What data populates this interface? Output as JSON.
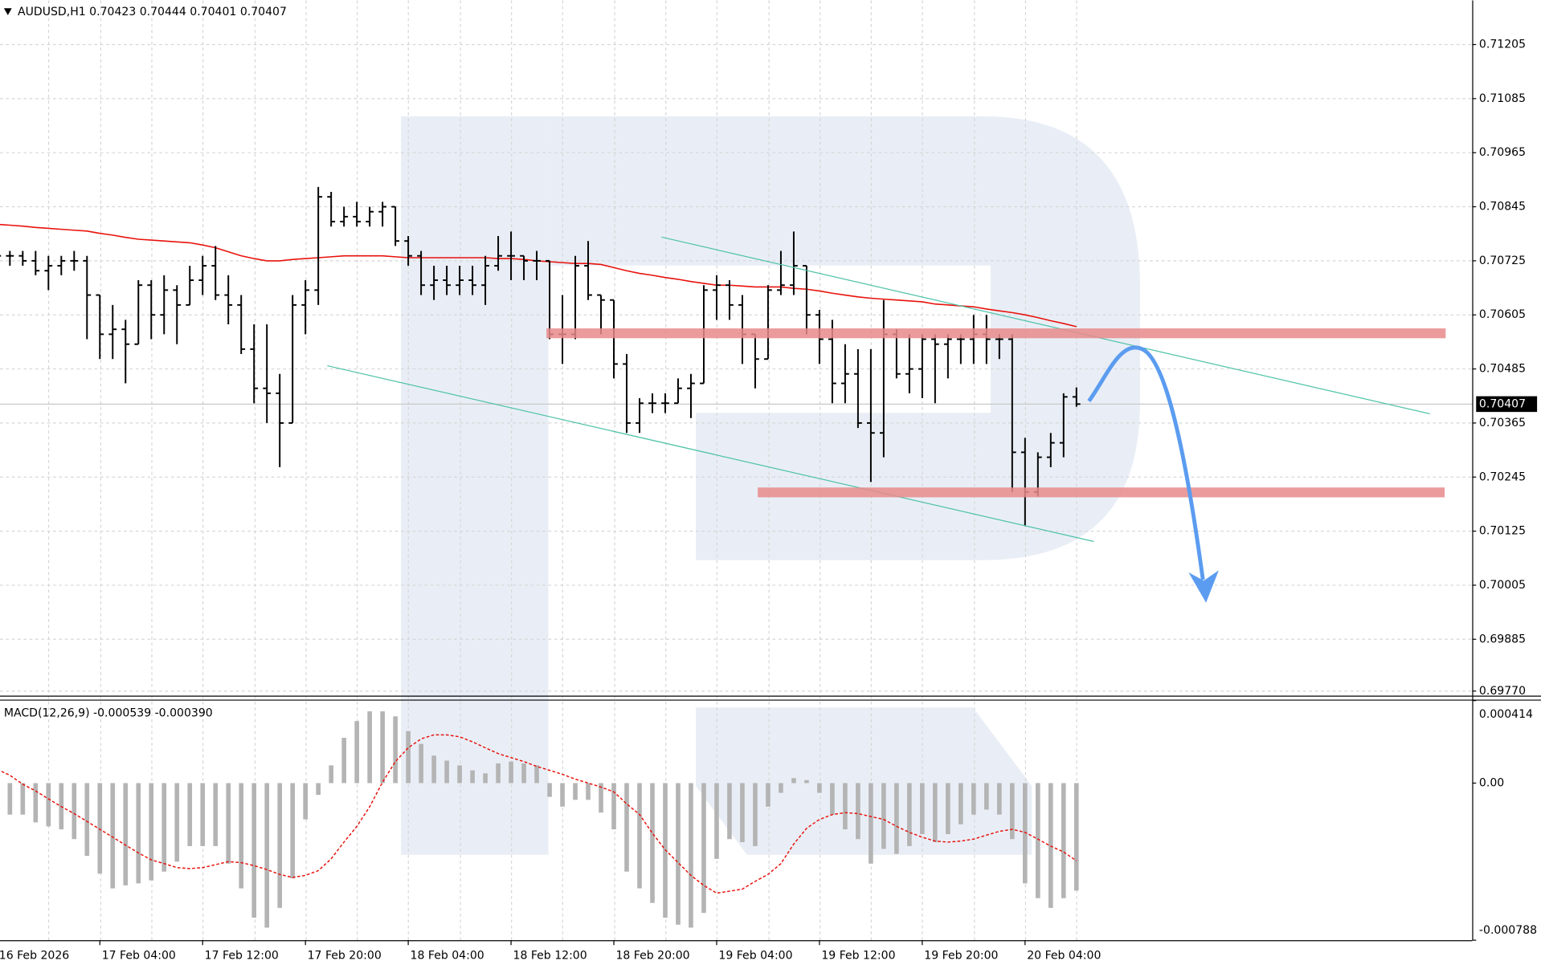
{
  "chart_data": [
    {
      "type": "ohlc",
      "title": "AUDUSD,H1 0.70423 0.70444 0.70401 0.70407",
      "color": "#000000",
      "categories": [
        "16 Feb 2026",
        null,
        null,
        null,
        null,
        null,
        null,
        null,
        "17 Feb 04:00",
        null,
        null,
        null,
        null,
        null,
        null,
        null,
        "17 Feb 12:00",
        null,
        null,
        null,
        null,
        null,
        null,
        null,
        "17 Feb 20:00",
        null,
        null,
        null,
        null,
        null,
        null,
        null,
        "18 Feb 04:00",
        null,
        null,
        null,
        null,
        null,
        null,
        null,
        "18 Feb 12:00",
        null,
        null,
        null,
        null,
        null,
        null,
        null,
        "18 Feb 20:00",
        null,
        null,
        null,
        null,
        null,
        null,
        null,
        "19 Feb 04:00",
        null,
        null,
        null,
        null,
        null,
        null,
        null,
        "19 Feb 12:00",
        null,
        null,
        null,
        null,
        null,
        null,
        null,
        "19 Feb 20:00",
        null,
        null,
        null,
        null,
        null,
        null,
        null,
        "20 Feb 04:00",
        null,
        null,
        null,
        null
      ],
      "open": [
        0.70725,
        0.70736,
        0.70736,
        0.70725,
        0.70703,
        0.70714,
        0.70725,
        0.70725,
        0.70649,
        0.70562,
        0.70573,
        0.7054,
        0.70671,
        0.70605,
        0.7066,
        0.70627,
        0.70682,
        0.70714,
        0.70649,
        0.70627,
        0.70529,
        0.70442,
        0.70431,
        0.70365,
        0.70627,
        0.7066,
        0.70867,
        0.70812,
        0.70823,
        0.70812,
        0.70834,
        0.70845,
        0.70769,
        0.70736,
        0.70671,
        0.70682,
        0.70671,
        0.70682,
        0.70671,
        0.70714,
        0.70736,
        0.70736,
        0.70725,
        0.70725,
        0.70562,
        0.70562,
        0.70714,
        0.70649,
        0.70638,
        0.70496,
        0.70365,
        0.70409,
        0.70409,
        0.70409,
        0.70442,
        0.70453,
        0.7066,
        0.70671,
        0.70627,
        0.70562,
        0.70507,
        0.7066,
        0.70671,
        0.70714,
        0.70605,
        0.70551,
        0.70453,
        0.70474,
        0.70365,
        0.70343,
        0.70562,
        0.70474,
        0.70485,
        0.70551,
        0.7054,
        0.70551,
        0.70551,
        0.70562,
        0.70551,
        0.70551,
        0.703,
        0.70212,
        0.70289,
        0.70321,
        0.70423
      ],
      "high": [
        0.70747,
        0.70747,
        0.70747,
        0.70747,
        0.70736,
        0.70736,
        0.70747,
        0.70736,
        0.70649,
        0.70627,
        0.70594,
        0.70682,
        0.70682,
        0.70693,
        0.70671,
        0.70714,
        0.70736,
        0.70758,
        0.70693,
        0.70649,
        0.70584,
        0.70584,
        0.70474,
        0.70649,
        0.70682,
        0.70889,
        0.70878,
        0.70845,
        0.70856,
        0.70845,
        0.70856,
        0.70845,
        0.7078,
        0.70747,
        0.70714,
        0.70714,
        0.70714,
        0.70714,
        0.70736,
        0.7078,
        0.7079,
        0.70736,
        0.70747,
        0.70725,
        0.70649,
        0.70736,
        0.70769,
        0.70649,
        0.70638,
        0.70518,
        0.7042,
        0.70431,
        0.70431,
        0.70464,
        0.70474,
        0.70671,
        0.70693,
        0.70682,
        0.70649,
        0.70562,
        0.70671,
        0.70747,
        0.7079,
        0.70714,
        0.70616,
        0.70594,
        0.7054,
        0.70529,
        0.70529,
        0.70638,
        0.70573,
        0.70562,
        0.70562,
        0.70562,
        0.70562,
        0.70562,
        0.70605,
        0.70605,
        0.70562,
        0.70562,
        0.70332,
        0.703,
        0.70343,
        0.70431,
        0.70444
      ],
      "low": [
        0.70714,
        0.70714,
        0.70714,
        0.70693,
        0.7066,
        0.70693,
        0.70703,
        0.70551,
        0.70507,
        0.70507,
        0.70453,
        0.7054,
        0.70551,
        0.70562,
        0.7054,
        0.70627,
        0.70649,
        0.70638,
        0.70584,
        0.70518,
        0.70409,
        0.70365,
        0.70267,
        0.70365,
        0.70562,
        0.70627,
        0.70801,
        0.70801,
        0.70801,
        0.70801,
        0.70801,
        0.70758,
        0.70714,
        0.70649,
        0.70638,
        0.70649,
        0.70649,
        0.70649,
        0.70627,
        0.70703,
        0.70682,
        0.70682,
        0.70682,
        0.70551,
        0.70496,
        0.70551,
        0.70638,
        0.70562,
        0.70464,
        0.70343,
        0.70343,
        0.70387,
        0.70387,
        0.70409,
        0.70376,
        0.70453,
        0.70594,
        0.70594,
        0.70496,
        0.70442,
        0.70507,
        0.70649,
        0.70649,
        0.70562,
        0.70496,
        0.70409,
        0.70409,
        0.70354,
        0.70234,
        0.70289,
        0.70464,
        0.70431,
        0.7042,
        0.70409,
        0.70464,
        0.70496,
        0.70496,
        0.70496,
        0.70507,
        0.70212,
        0.70136,
        0.70202,
        0.70267,
        0.70289,
        0.70401
      ],
      "close": [
        0.70736,
        0.70736,
        0.70725,
        0.70703,
        0.70714,
        0.70725,
        0.70725,
        0.70649,
        0.70562,
        0.70573,
        0.7054,
        0.70671,
        0.70605,
        0.7066,
        0.70627,
        0.70682,
        0.70714,
        0.70649,
        0.70627,
        0.70529,
        0.70442,
        0.70431,
        0.70365,
        0.70627,
        0.7066,
        0.70867,
        0.70812,
        0.70823,
        0.70812,
        0.70834,
        0.70845,
        0.70769,
        0.70736,
        0.70671,
        0.70682,
        0.70671,
        0.70682,
        0.70671,
        0.70714,
        0.70736,
        0.70736,
        0.70725,
        0.70725,
        0.70562,
        0.70562,
        0.70714,
        0.70649,
        0.70638,
        0.70496,
        0.70365,
        0.70409,
        0.70409,
        0.70409,
        0.70442,
        0.70453,
        0.7066,
        0.70671,
        0.70627,
        0.70562,
        0.70507,
        0.7066,
        0.70671,
        0.70714,
        0.70605,
        0.70551,
        0.70453,
        0.70474,
        0.70365,
        0.70343,
        0.70562,
        0.70474,
        0.70485,
        0.70551,
        0.7054,
        0.70551,
        0.70551,
        0.70562,
        0.70551,
        0.70551,
        0.703,
        0.70212,
        0.70289,
        0.70321,
        0.70423,
        0.70407
      ],
      "ma": {
        "color": "#e8120c",
        "values": [
          0.70806,
          0.70804,
          0.70802,
          0.70799,
          0.70797,
          0.70795,
          0.70793,
          0.70791,
          0.70786,
          0.70782,
          0.70777,
          0.70773,
          0.70771,
          0.70769,
          0.70767,
          0.70765,
          0.7076,
          0.70754,
          0.70745,
          0.70736,
          0.7073,
          0.70725,
          0.70725,
          0.70728,
          0.7073,
          0.70732,
          0.70734,
          0.70736,
          0.70736,
          0.70736,
          0.70736,
          0.70734,
          0.70732,
          0.70732,
          0.70732,
          0.70732,
          0.70732,
          0.70732,
          0.70732,
          0.7073,
          0.7073,
          0.70728,
          0.70725,
          0.70723,
          0.70721,
          0.70719,
          0.70719,
          0.70717,
          0.7071,
          0.70703,
          0.70697,
          0.70693,
          0.70688,
          0.70684,
          0.70679,
          0.70675,
          0.70671,
          0.70671,
          0.70669,
          0.70667,
          0.70667,
          0.70667,
          0.70664,
          0.70662,
          0.70658,
          0.70653,
          0.70649,
          0.70645,
          0.70642,
          0.7064,
          0.70638,
          0.70636,
          0.70634,
          0.70629,
          0.70627,
          0.70625,
          0.70623,
          0.70618,
          0.70614,
          0.7061,
          0.70605,
          0.70599,
          0.70592,
          0.70586,
          0.70579
        ]
      },
      "ylim": [
        0.69762,
        0.71303
      ],
      "yticks": [
        0.71205,
        0.71085,
        0.70965,
        0.70845,
        0.70725,
        0.70605,
        0.70485,
        0.70365,
        0.70245,
        0.70125,
        0.70005,
        0.69885,
        {
          "value": 0.6977,
          "label": "0.69770"
        }
      ],
      "grid": true
    },
    {
      "type": "macd",
      "title": "MACD(12,26,9) -0.000539 -0.000390",
      "histogram": {
        "color": "#b4b4b4",
        "values": [
          -0.000148,
          -0.000158,
          -0.000158,
          -0.000197,
          -0.000217,
          -0.000232,
          -0.000281,
          -0.000365,
          -0.000454,
          -0.000528,
          -0.000513,
          -0.000503,
          -0.000488,
          -0.000444,
          -0.000394,
          -0.000316,
          -0.000316,
          -0.000316,
          -0.000404,
          -0.000528,
          -0.000675,
          -0.000725,
          -0.000626,
          -0.000478,
          -0.000182,
          -5.9e-05,
          8.9e-05,
          0.000227,
          0.000311,
          0.00036,
          0.00036,
          0.000335,
          0.000261,
          0.000197,
          0.000138,
          0.000113,
          8.9e-05,
          6.4e-05,
          4.9e-05,
          9.9e-05,
          0.000108,
          9.9e-05,
          8.9e-05,
          -6.9e-05,
          -0.000118,
          -8.4e-05,
          -8.4e-05,
          -0.000148,
          -0.000232,
          -0.000444,
          -0.000528,
          -0.000601,
          -0.000675,
          -0.00071,
          -0.000725,
          -0.000651,
          -0.00038,
          -0.000281,
          -0.000296,
          -0.000316,
          -0.000118,
          -4.9e-05,
          2.5e-05,
          1.5e-05,
          -4.9e-05,
          -0.000158,
          -0.000232,
          -0.000281,
          -0.000404,
          -0.00033,
          -0.000355,
          -0.000316,
          -0.000256,
          -0.000296,
          -0.000256,
          -0.000207,
          -0.000158,
          -0.000133,
          -0.000158,
          -0.000281,
          -0.000503,
          -0.000577,
          -0.000626,
          -0.000577,
          -0.000539
        ]
      },
      "signal": {
        "color": "#e8120c",
        "values": [
          6.9e-05,
          3.9e-05,
          -5e-06,
          -3.9e-05,
          -7.9e-05,
          -0.000118,
          -0.000153,
          -0.000192,
          -0.000232,
          -0.000271,
          -0.000311,
          -0.00035,
          -0.000385,
          -0.000404,
          -0.000424,
          -0.000429,
          -0.000424,
          -0.000409,
          -0.000394,
          -0.000399,
          -0.000414,
          -0.000434,
          -0.000458,
          -0.000473,
          -0.000463,
          -0.000439,
          -0.00038,
          -0.000296,
          -0.000217,
          -0.000118,
          5e-06,
          0.000108,
          0.000177,
          0.000222,
          0.000242,
          0.000242,
          0.000232,
          0.000207,
          0.000177,
          0.000148,
          0.000128,
          0.000108,
          8.4e-05,
          6.4e-05,
          4.4e-05,
          2e-05,
          0,
          -2e-05,
          -4.4e-05,
          -0.000104,
          -0.000158,
          -0.000251,
          -0.000335,
          -0.000399,
          -0.000463,
          -0.000513,
          -0.000552,
          -0.000542,
          -0.000532,
          -0.000493,
          -0.000458,
          -0.000404,
          -0.000306,
          -0.000227,
          -0.000182,
          -0.000158,
          -0.000148,
          -0.000153,
          -0.000168,
          -0.000182,
          -0.000217,
          -0.000247,
          -0.000271,
          -0.000291,
          -0.000296,
          -0.000291,
          -0.000281,
          -0.000261,
          -0.000242,
          -0.000232,
          -0.000247,
          -0.000281,
          -0.000316,
          -0.000345,
          -0.00039
        ]
      },
      "ylim": [
        -0.000788,
        0.000414
      ],
      "yticks": [
        0.000414,
        {
          "value": 0,
          "label": "0.00"
        },
        -0.000788
      ]
    }
  ]
}
